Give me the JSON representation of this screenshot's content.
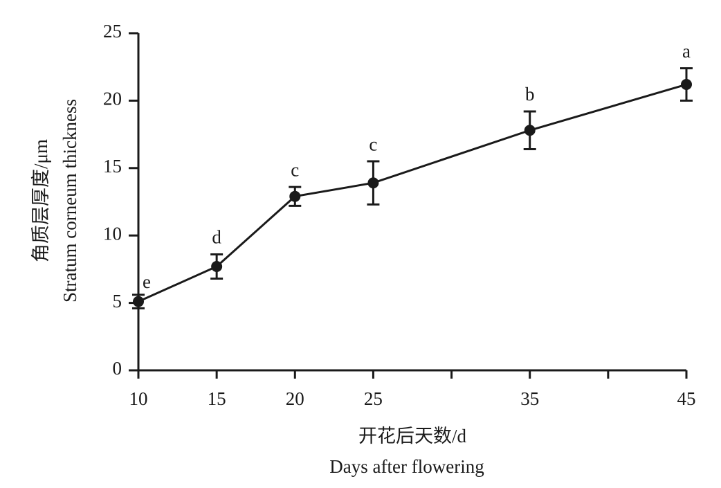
{
  "chart_data": {
    "type": "line",
    "ylabel": [
      "角质层厚度/μm",
      "Stratum corneum thickness"
    ],
    "xlabel": [
      "开花后天数/d",
      "Days after flowering"
    ],
    "x": [
      10,
      15,
      20,
      25,
      35,
      45
    ],
    "values": [
      5.1,
      7.7,
      12.9,
      13.9,
      17.8,
      21.2
    ],
    "errors": [
      0.5,
      0.9,
      0.7,
      1.6,
      1.4,
      1.2
    ],
    "significance": [
      "e",
      "d",
      "c",
      "c",
      "b",
      "a"
    ],
    "color": "#1a1a1a",
    "xlim": [
      10,
      45
    ],
    "xticks": [
      10,
      15,
      20,
      25,
      {
        "value": 30,
        "label": null
      },
      35,
      {
        "value": 40,
        "label": null
      },
      45
    ],
    "ylim": [
      0,
      25
    ],
    "yticks": [
      0,
      5,
      10,
      15,
      20,
      25
    ],
    "grid": false
  }
}
